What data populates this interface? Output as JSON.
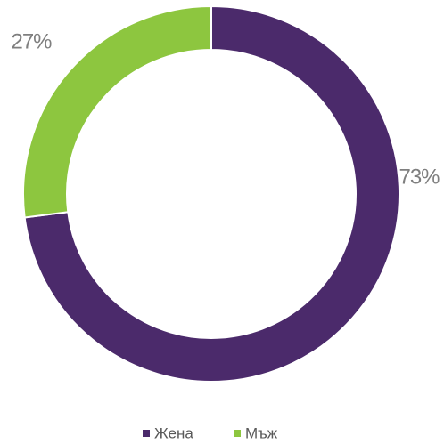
{
  "chart_data": {
    "type": "donut",
    "categories": [
      "Жена",
      "Мъж"
    ],
    "values": [
      73,
      27
    ],
    "value_labels": [
      "73%",
      "27%"
    ],
    "colors": [
      "#4b2a6b",
      "#8dc63f"
    ],
    "legend": "bottom"
  }
}
